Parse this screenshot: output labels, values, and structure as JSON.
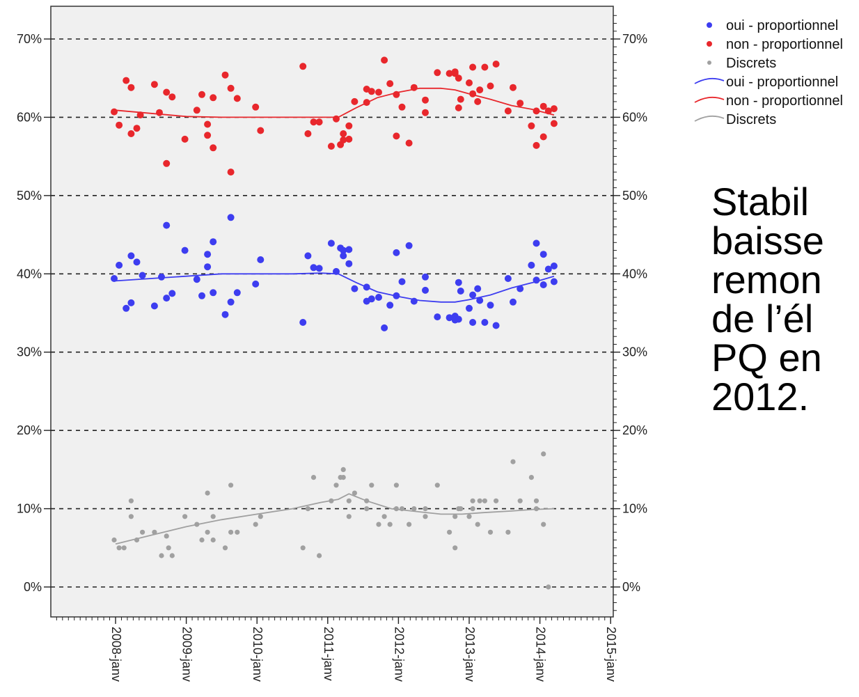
{
  "chart_data": {
    "type": "scatter",
    "title": "",
    "xlabel": "",
    "ylabel": "",
    "ylim": [
      0,
      0.74
    ],
    "y_ticks": [
      "0%",
      "10%",
      "20%",
      "30%",
      "40%",
      "50%",
      "60%",
      "70%"
    ],
    "x_ticks": [
      "2008-janv",
      "2009-janv",
      "2010-janv",
      "2011-janv",
      "2012-janv",
      "2013-janv",
      "2014-janv",
      "2015-janv"
    ],
    "grid": "dashed horizontal",
    "legend_position": "top-right",
    "legend": [
      {
        "label": "oui - proportionnel",
        "kind": "point",
        "color": "#3d3df0"
      },
      {
        "label": "non - proportionnel",
        "kind": "point",
        "color": "#e8272c"
      },
      {
        "label": "Discrets",
        "kind": "point",
        "color": "#a0a0a0"
      },
      {
        "label": "oui - proportionnel",
        "kind": "line",
        "color": "#3d3df0"
      },
      {
        "label": "non - proportionnel",
        "kind": "line",
        "color": "#e8272c"
      },
      {
        "label": "Discrets",
        "kind": "line",
        "color": "#a0a0a0"
      }
    ],
    "series": [
      {
        "name": "non - proportionnel",
        "color": "#e8272c",
        "points": [
          [
            2007.98,
            0.607
          ],
          [
            2008.05,
            0.59
          ],
          [
            2008.15,
            0.647
          ],
          [
            2008.22,
            0.638
          ],
          [
            2008.22,
            0.579
          ],
          [
            2008.3,
            0.586
          ],
          [
            2008.35,
            0.603
          ],
          [
            2008.55,
            0.642
          ],
          [
            2008.62,
            0.606
          ],
          [
            2008.72,
            0.541
          ],
          [
            2008.72,
            0.632
          ],
          [
            2008.8,
            0.626
          ],
          [
            2008.98,
            0.572
          ],
          [
            2009.15,
            0.609
          ],
          [
            2009.22,
            0.629
          ],
          [
            2009.3,
            0.577
          ],
          [
            2009.3,
            0.591
          ],
          [
            2009.38,
            0.561
          ],
          [
            2009.38,
            0.625
          ],
          [
            2009.55,
            0.654
          ],
          [
            2009.63,
            0.53
          ],
          [
            2009.63,
            0.637
          ],
          [
            2009.72,
            0.624
          ],
          [
            2009.98,
            0.613
          ],
          [
            2010.05,
            0.583
          ],
          [
            2010.65,
            0.665
          ],
          [
            2010.72,
            0.579
          ],
          [
            2010.8,
            0.594
          ],
          [
            2010.88,
            0.594
          ],
          [
            2011.05,
            0.563
          ],
          [
            2011.12,
            0.598
          ],
          [
            2011.18,
            0.565
          ],
          [
            2011.22,
            0.571
          ],
          [
            2011.22,
            0.579
          ],
          [
            2011.3,
            0.572
          ],
          [
            2011.3,
            0.589
          ],
          [
            2011.38,
            0.62
          ],
          [
            2011.55,
            0.636
          ],
          [
            2011.55,
            0.619
          ],
          [
            2011.62,
            0.633
          ],
          [
            2011.72,
            0.632
          ],
          [
            2011.8,
            0.673
          ],
          [
            2011.88,
            0.643
          ],
          [
            2011.97,
            0.629
          ],
          [
            2011.97,
            0.576
          ],
          [
            2012.05,
            0.613
          ],
          [
            2012.15,
            0.567
          ],
          [
            2012.22,
            0.638
          ],
          [
            2012.38,
            0.606
          ],
          [
            2012.38,
            0.622
          ],
          [
            2012.55,
            0.657
          ],
          [
            2012.72,
            0.656
          ],
          [
            2012.8,
            0.656
          ],
          [
            2012.8,
            0.658
          ],
          [
            2012.85,
            0.612
          ],
          [
            2012.85,
            0.65
          ],
          [
            2012.88,
            0.623
          ],
          [
            2013.0,
            0.644
          ],
          [
            2013.05,
            0.63
          ],
          [
            2013.05,
            0.664
          ],
          [
            2013.12,
            0.62
          ],
          [
            2013.15,
            0.635
          ],
          [
            2013.22,
            0.664
          ],
          [
            2013.3,
            0.64
          ],
          [
            2013.38,
            0.668
          ],
          [
            2013.55,
            0.608
          ],
          [
            2013.62,
            0.638
          ],
          [
            2013.72,
            0.618
          ],
          [
            2013.88,
            0.589
          ],
          [
            2013.95,
            0.564
          ],
          [
            2013.95,
            0.608
          ],
          [
            2014.05,
            0.575
          ],
          [
            2014.05,
            0.614
          ],
          [
            2014.12,
            0.608
          ],
          [
            2014.2,
            0.611
          ],
          [
            2014.2,
            0.592
          ]
        ]
      },
      {
        "name": "oui - proportionnel",
        "color": "#3d3df0",
        "points": [
          [
            2007.98,
            0.394
          ],
          [
            2008.05,
            0.411
          ],
          [
            2008.15,
            0.356
          ],
          [
            2008.22,
            0.423
          ],
          [
            2008.22,
            0.363
          ],
          [
            2008.3,
            0.415
          ],
          [
            2008.38,
            0.398
          ],
          [
            2008.55,
            0.359
          ],
          [
            2008.65,
            0.396
          ],
          [
            2008.72,
            0.462
          ],
          [
            2008.72,
            0.369
          ],
          [
            2008.8,
            0.375
          ],
          [
            2008.98,
            0.43
          ],
          [
            2009.15,
            0.393
          ],
          [
            2009.22,
            0.372
          ],
          [
            2009.3,
            0.409
          ],
          [
            2009.3,
            0.425
          ],
          [
            2009.38,
            0.441
          ],
          [
            2009.38,
            0.376
          ],
          [
            2009.55,
            0.348
          ],
          [
            2009.63,
            0.472
          ],
          [
            2009.63,
            0.364
          ],
          [
            2009.72,
            0.376
          ],
          [
            2009.98,
            0.387
          ],
          [
            2010.05,
            0.418
          ],
          [
            2010.65,
            0.338
          ],
          [
            2010.72,
            0.423
          ],
          [
            2010.8,
            0.408
          ],
          [
            2010.88,
            0.407
          ],
          [
            2011.05,
            0.439
          ],
          [
            2011.12,
            0.403
          ],
          [
            2011.18,
            0.433
          ],
          [
            2011.22,
            0.43
          ],
          [
            2011.22,
            0.423
          ],
          [
            2011.3,
            0.413
          ],
          [
            2011.3,
            0.431
          ],
          [
            2011.38,
            0.381
          ],
          [
            2011.55,
            0.383
          ],
          [
            2011.55,
            0.365
          ],
          [
            2011.62,
            0.368
          ],
          [
            2011.72,
            0.37
          ],
          [
            2011.8,
            0.331
          ],
          [
            2011.88,
            0.36
          ],
          [
            2011.97,
            0.372
          ],
          [
            2011.97,
            0.427
          ],
          [
            2012.05,
            0.39
          ],
          [
            2012.15,
            0.436
          ],
          [
            2012.22,
            0.365
          ],
          [
            2012.38,
            0.379
          ],
          [
            2012.38,
            0.396
          ],
          [
            2012.55,
            0.345
          ],
          [
            2012.72,
            0.344
          ],
          [
            2012.8,
            0.346
          ],
          [
            2012.8,
            0.341
          ],
          [
            2012.85,
            0.389
          ],
          [
            2012.85,
            0.342
          ],
          [
            2012.88,
            0.378
          ],
          [
            2013.0,
            0.356
          ],
          [
            2013.05,
            0.338
          ],
          [
            2013.05,
            0.373
          ],
          [
            2013.12,
            0.381
          ],
          [
            2013.15,
            0.366
          ],
          [
            2013.22,
            0.338
          ],
          [
            2013.3,
            0.36
          ],
          [
            2013.38,
            0.334
          ],
          [
            2013.55,
            0.394
          ],
          [
            2013.62,
            0.364
          ],
          [
            2013.72,
            0.381
          ],
          [
            2013.88,
            0.411
          ],
          [
            2013.95,
            0.439
          ],
          [
            2013.95,
            0.392
          ],
          [
            2014.05,
            0.425
          ],
          [
            2014.05,
            0.386
          ],
          [
            2014.12,
            0.406
          ],
          [
            2014.2,
            0.41
          ],
          [
            2014.2,
            0.39
          ]
        ]
      },
      {
        "name": "Discrets",
        "color": "#a0a0a0",
        "points": [
          [
            2007.98,
            0.06
          ],
          [
            2008.05,
            0.05
          ],
          [
            2008.12,
            0.05
          ],
          [
            2008.22,
            0.11
          ],
          [
            2008.22,
            0.09
          ],
          [
            2008.3,
            0.06
          ],
          [
            2008.38,
            0.07
          ],
          [
            2008.55,
            0.07
          ],
          [
            2008.65,
            0.04
          ],
          [
            2008.72,
            0.065
          ],
          [
            2008.75,
            0.05
          ],
          [
            2008.8,
            0.04
          ],
          [
            2008.98,
            0.09
          ],
          [
            2009.15,
            0.08
          ],
          [
            2009.22,
            0.06
          ],
          [
            2009.3,
            0.12
          ],
          [
            2009.3,
            0.07
          ],
          [
            2009.38,
            0.06
          ],
          [
            2009.38,
            0.09
          ],
          [
            2009.55,
            0.05
          ],
          [
            2009.63,
            0.13
          ],
          [
            2009.63,
            0.07
          ],
          [
            2009.72,
            0.07
          ],
          [
            2009.98,
            0.08
          ],
          [
            2010.05,
            0.09
          ],
          [
            2010.65,
            0.05
          ],
          [
            2010.72,
            0.1
          ],
          [
            2010.8,
            0.14
          ],
          [
            2010.88,
            0.04
          ],
          [
            2011.05,
            0.11
          ],
          [
            2011.12,
            0.13
          ],
          [
            2011.18,
            0.14
          ],
          [
            2011.22,
            0.15
          ],
          [
            2011.22,
            0.14
          ],
          [
            2011.3,
            0.09
          ],
          [
            2011.3,
            0.11
          ],
          [
            2011.38,
            0.12
          ],
          [
            2011.55,
            0.11
          ],
          [
            2011.55,
            0.1
          ],
          [
            2011.62,
            0.13
          ],
          [
            2011.72,
            0.08
          ],
          [
            2011.8,
            0.09
          ],
          [
            2011.88,
            0.08
          ],
          [
            2011.97,
            0.13
          ],
          [
            2011.97,
            0.1
          ],
          [
            2012.05,
            0.1
          ],
          [
            2012.15,
            0.08
          ],
          [
            2012.22,
            0.1
          ],
          [
            2012.38,
            0.1
          ],
          [
            2012.38,
            0.09
          ],
          [
            2012.55,
            0.13
          ],
          [
            2012.72,
            0.07
          ],
          [
            2012.8,
            0.09
          ],
          [
            2012.8,
            0.05
          ],
          [
            2012.85,
            0.1
          ],
          [
            2012.88,
            0.1
          ],
          [
            2013.0,
            0.09
          ],
          [
            2013.05,
            0.11
          ],
          [
            2013.05,
            0.1
          ],
          [
            2013.12,
            0.08
          ],
          [
            2013.15,
            0.11
          ],
          [
            2013.22,
            0.11
          ],
          [
            2013.3,
            0.07
          ],
          [
            2013.38,
            0.11
          ],
          [
            2013.55,
            0.07
          ],
          [
            2013.62,
            0.16
          ],
          [
            2013.72,
            0.11
          ],
          [
            2013.88,
            0.14
          ],
          [
            2013.95,
            0.11
          ],
          [
            2013.95,
            0.1
          ],
          [
            2014.05,
            0.08
          ],
          [
            2014.05,
            0.17
          ],
          [
            2014.12,
            0.0
          ]
        ]
      }
    ],
    "trend_lines": [
      {
        "name": "non - proportionnel",
        "color": "#e8272c",
        "points": [
          [
            2008.0,
            0.609
          ],
          [
            2008.5,
            0.605
          ],
          [
            2009.0,
            0.601
          ],
          [
            2009.5,
            0.6
          ],
          [
            2010.0,
            0.6
          ],
          [
            2010.5,
            0.6
          ],
          [
            2010.9,
            0.6
          ],
          [
            2011.15,
            0.6
          ],
          [
            2011.4,
            0.612
          ],
          [
            2011.7,
            0.625
          ],
          [
            2012.0,
            0.632
          ],
          [
            2012.3,
            0.637
          ],
          [
            2012.6,
            0.637
          ],
          [
            2012.8,
            0.635
          ],
          [
            2013.0,
            0.63
          ],
          [
            2013.3,
            0.623
          ],
          [
            2013.6,
            0.615
          ],
          [
            2013.9,
            0.61
          ],
          [
            2014.2,
            0.603
          ]
        ]
      },
      {
        "name": "oui - proportionnel",
        "color": "#3d3df0",
        "points": [
          [
            2008.0,
            0.391
          ],
          [
            2008.5,
            0.394
          ],
          [
            2009.0,
            0.397
          ],
          [
            2009.5,
            0.4
          ],
          [
            2010.0,
            0.4
          ],
          [
            2010.5,
            0.4
          ],
          [
            2010.9,
            0.401
          ],
          [
            2011.15,
            0.4
          ],
          [
            2011.4,
            0.389
          ],
          [
            2011.7,
            0.377
          ],
          [
            2012.0,
            0.371
          ],
          [
            2012.3,
            0.366
          ],
          [
            2012.6,
            0.364
          ],
          [
            2012.8,
            0.364
          ],
          [
            2013.0,
            0.367
          ],
          [
            2013.3,
            0.373
          ],
          [
            2013.6,
            0.382
          ],
          [
            2013.9,
            0.389
          ],
          [
            2014.2,
            0.397
          ]
        ]
      },
      {
        "name": "Discrets",
        "color": "#a0a0a0",
        "points": [
          [
            2008.0,
            0.055
          ],
          [
            2008.5,
            0.066
          ],
          [
            2009.0,
            0.077
          ],
          [
            2009.5,
            0.086
          ],
          [
            2010.0,
            0.093
          ],
          [
            2010.5,
            0.1
          ],
          [
            2010.9,
            0.108
          ],
          [
            2011.15,
            0.112
          ],
          [
            2011.3,
            0.119
          ],
          [
            2011.55,
            0.11
          ],
          [
            2011.9,
            0.1
          ],
          [
            2012.3,
            0.096
          ],
          [
            2012.6,
            0.093
          ],
          [
            2012.9,
            0.093
          ],
          [
            2013.2,
            0.095
          ],
          [
            2013.6,
            0.097
          ],
          [
            2013.9,
            0.099
          ],
          [
            2014.2,
            0.1
          ]
        ]
      }
    ]
  },
  "slide_text": {
    "line1": "Stabil",
    "line2": "baisse",
    "line3": "remon",
    "line4": "de l’él",
    "line5": "PQ en",
    "line6": "2012."
  }
}
